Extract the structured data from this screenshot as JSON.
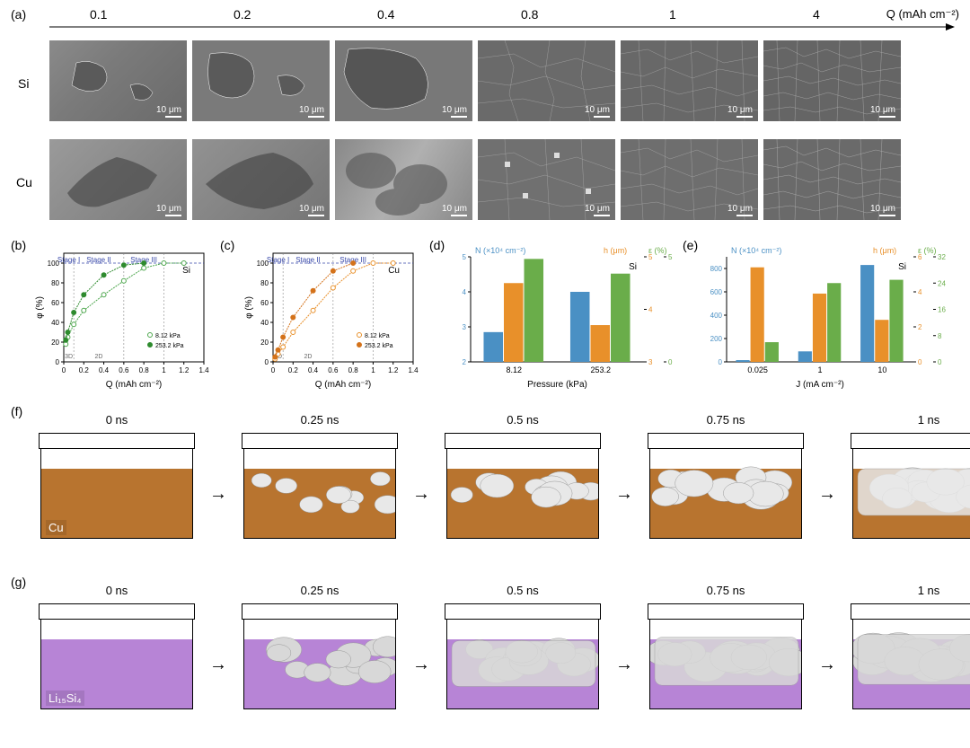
{
  "panel_labels": {
    "a": "(a)",
    "b": "(b)",
    "c": "(c)",
    "d": "(d)",
    "e": "(e)",
    "f": "(f)",
    "g": "(g)"
  },
  "q_axis": {
    "label": "Q (mAh cm⁻²)",
    "values": [
      "0.1",
      "0.2",
      "0.4",
      "0.8",
      "1",
      "4"
    ]
  },
  "row_labels": {
    "si": "Si",
    "cu": "Cu"
  },
  "scale_bar": "10 μm",
  "panel_b": {
    "type": "scatter-line",
    "title": "Si",
    "xlabel": "Q (mAh cm⁻²)",
    "ylabel": "φ (%)",
    "xlim": [
      0,
      1.4
    ],
    "ylim": [
      0,
      110
    ],
    "xticks": [
      0,
      0.2,
      0.4,
      0.6,
      0.8,
      1.0,
      1.2,
      1.4
    ],
    "yticks": [
      0,
      20,
      40,
      60,
      80,
      100
    ],
    "stages": [
      "Stage I",
      "Stage II",
      "Stage III"
    ],
    "dims": [
      "3D",
      "2D"
    ],
    "series": [
      {
        "name": "8.12 kPa",
        "marker": "open-circle",
        "color": "#4ca64c",
        "x": [
          0.02,
          0.04,
          0.1,
          0.2,
          0.4,
          0.6,
          0.8,
          1.0,
          1.2
        ],
        "y": [
          18,
          25,
          38,
          52,
          68,
          82,
          95,
          100,
          100
        ]
      },
      {
        "name": "253.2 kPa",
        "marker": "filled-circle",
        "color": "#2e8b2e",
        "x": [
          0.02,
          0.04,
          0.1,
          0.2,
          0.4,
          0.6,
          0.8
        ],
        "y": [
          22,
          30,
          50,
          68,
          88,
          98,
          100
        ]
      }
    ]
  },
  "panel_c": {
    "type": "scatter-line",
    "title": "Cu",
    "xlabel": "Q (mAh cm⁻²)",
    "ylabel": "φ (%)",
    "xlim": [
      0,
      1.4
    ],
    "ylim": [
      0,
      110
    ],
    "xticks": [
      0,
      0.2,
      0.4,
      0.6,
      0.8,
      1.0,
      1.2,
      1.4
    ],
    "yticks": [
      0,
      20,
      40,
      60,
      80,
      100
    ],
    "stages": [
      "Stage I",
      "Stage II",
      "Stage III"
    ],
    "dims": [
      "3D",
      "2D"
    ],
    "series": [
      {
        "name": "8.12 kPa",
        "marker": "open-circle",
        "color": "#e8902a",
        "x": [
          0.02,
          0.05,
          0.1,
          0.2,
          0.4,
          0.6,
          0.8,
          1.0,
          1.2
        ],
        "y": [
          3,
          8,
          15,
          30,
          52,
          75,
          92,
          100,
          100
        ]
      },
      {
        "name": "253.2 kPa",
        "marker": "filled-circle",
        "color": "#d4721a",
        "x": [
          0.02,
          0.05,
          0.1,
          0.2,
          0.4,
          0.6,
          0.8
        ],
        "y": [
          5,
          12,
          25,
          45,
          72,
          92,
          100
        ]
      }
    ]
  },
  "panel_d": {
    "type": "grouped-bar",
    "title": "Si",
    "xlabel": "Pressure (kPa)",
    "categories": [
      "8.12",
      "253.2"
    ],
    "axes": [
      {
        "label": "N (×10⁴ cm⁻²)",
        "color": "#4a90c4",
        "lim": [
          2,
          5
        ],
        "ticks": [
          2,
          3,
          4,
          5
        ],
        "values": [
          2.85,
          4.0
        ]
      },
      {
        "label": "h (μm)",
        "color": "#e8902a",
        "lim": [
          3,
          5
        ],
        "ticks": [
          3,
          4,
          5
        ],
        "values": [
          4.5,
          3.7
        ]
      },
      {
        "label": "ε (%)",
        "color": "#6aad4a",
        "lim": [
          0,
          5
        ],
        "ticks": [
          0,
          5
        ],
        "values": [
          4.9,
          4.2
        ]
      }
    ]
  },
  "panel_e": {
    "type": "grouped-bar",
    "title": "Si",
    "xlabel": "J (mA cm⁻²)",
    "categories": [
      "0.025",
      "1",
      "10"
    ],
    "axes": [
      {
        "label": "N (×10⁴ cm⁻²)",
        "color": "#4a90c4",
        "lim": [
          0,
          900
        ],
        "ticks": [
          0,
          200,
          400,
          600,
          800
        ],
        "values": [
          15,
          90,
          830
        ]
      },
      {
        "label": "h (μm)",
        "color": "#e8902a",
        "lim": [
          0,
          6
        ],
        "ticks": [
          0,
          2,
          4,
          6
        ],
        "values": [
          5.4,
          3.9,
          2.4
        ]
      },
      {
        "label": "ε (%)",
        "color": "#6aad4a",
        "lim": [
          0,
          32
        ],
        "ticks": [
          0,
          8,
          16,
          24,
          32
        ],
        "values": [
          6,
          24,
          25
        ]
      }
    ]
  },
  "sim": {
    "times": [
      "0 ns",
      "0.25 ns",
      "0.5 ns",
      "0.75 ns",
      "1 ns"
    ],
    "f": {
      "substrate": "Cu",
      "bg_color": "#b8742f",
      "deposit_color": "#e8e8e8",
      "coverage": [
        0,
        0.25,
        0.4,
        0.55,
        0.7
      ]
    },
    "g": {
      "substrate": "Li₁₅Si₄",
      "bg_color": "#b784d6",
      "deposit_color": "#d8d8d8",
      "coverage": [
        0,
        0.45,
        0.65,
        0.78,
        0.88
      ]
    }
  },
  "colors": {
    "text": "#000",
    "stage_text": "#3a4aaa",
    "bg": "#fff"
  }
}
